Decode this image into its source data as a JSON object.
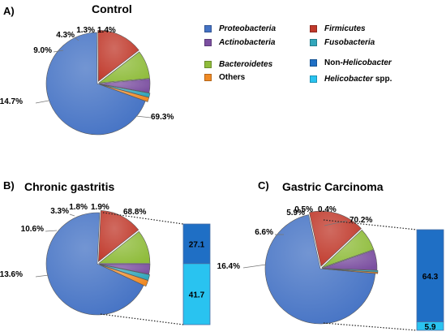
{
  "panels": {
    "a": {
      "label": "A)",
      "title": "Control"
    },
    "b": {
      "label": "B)",
      "title": "Chronic gastritis"
    },
    "c": {
      "label": "C)",
      "title": "Gastric Carcinoma"
    }
  },
  "legend": {
    "items": [
      {
        "label": "Proteobacteria",
        "color": "#4472C4",
        "italic": true
      },
      {
        "label": "Firmicutes",
        "color": "#C0392B",
        "italic": true
      },
      {
        "label": "Actinobacteria",
        "color": "#7B4FA0",
        "italic": true
      },
      {
        "label": "Fusobacteria",
        "color": "#31A6BB",
        "italic": true
      },
      {
        "label": "Bacteroidetes",
        "color": "#8FBC3B",
        "italic": true
      },
      {
        "label": "Non-Helicobacter",
        "color": "#1F6FC5",
        "italic": false
      },
      {
        "label": "Others",
        "color": "#F08A24",
        "italic": false
      },
      {
        "label": "Helicobacter spp.",
        "color": "#29C3F0",
        "italic": true
      }
    ]
  },
  "chart_data": [
    {
      "type": "pie",
      "title": "Control",
      "categories": [
        "Proteobacteria",
        "Firmicutes",
        "Bacteroidetes",
        "Actinobacteria",
        "Fusobacteria",
        "Others"
      ],
      "values": [
        69.3,
        14.7,
        9.0,
        4.3,
        1.3,
        1.4
      ],
      "labels": [
        "69.3%",
        "14.7%",
        "9.0%",
        "4.3%",
        "1.3%",
        "1.4%"
      ]
    },
    {
      "type": "pie",
      "title": "Chronic gastritis",
      "categories": [
        "Proteobacteria",
        "Firmicutes",
        "Bacteroidetes",
        "Actinobacteria",
        "Fusobacteria",
        "Others"
      ],
      "values": [
        68.8,
        13.6,
        10.6,
        3.3,
        1.8,
        1.9
      ],
      "labels": [
        "68.8%",
        "13.6%",
        "10.6%",
        "3.3%",
        "1.8%",
        "1.9%"
      ],
      "breakdown": {
        "of": "Proteobacteria",
        "categories": [
          "Non-Helicobacter",
          "Helicobacter spp."
        ],
        "values": [
          27.1,
          41.7
        ],
        "labels": [
          "27.1",
          "41.7"
        ]
      }
    },
    {
      "type": "pie",
      "title": "Gastric Carcinoma",
      "categories": [
        "Proteobacteria",
        "Firmicutes",
        "Bacteroidetes",
        "Actinobacteria",
        "Fusobacteria",
        "Others"
      ],
      "values": [
        70.2,
        16.4,
        6.6,
        5.9,
        0.5,
        0.4
      ],
      "labels": [
        "70.2%",
        "16.4%",
        "6.6%",
        "5.9%",
        "0.5%",
        "0.4%"
      ],
      "breakdown": {
        "of": "Proteobacteria",
        "categories": [
          "Non-Helicobacter",
          "Helicobacter spp."
        ],
        "values": [
          64.3,
          5.9
        ],
        "labels": [
          "64.3",
          "5.9"
        ]
      }
    }
  ]
}
